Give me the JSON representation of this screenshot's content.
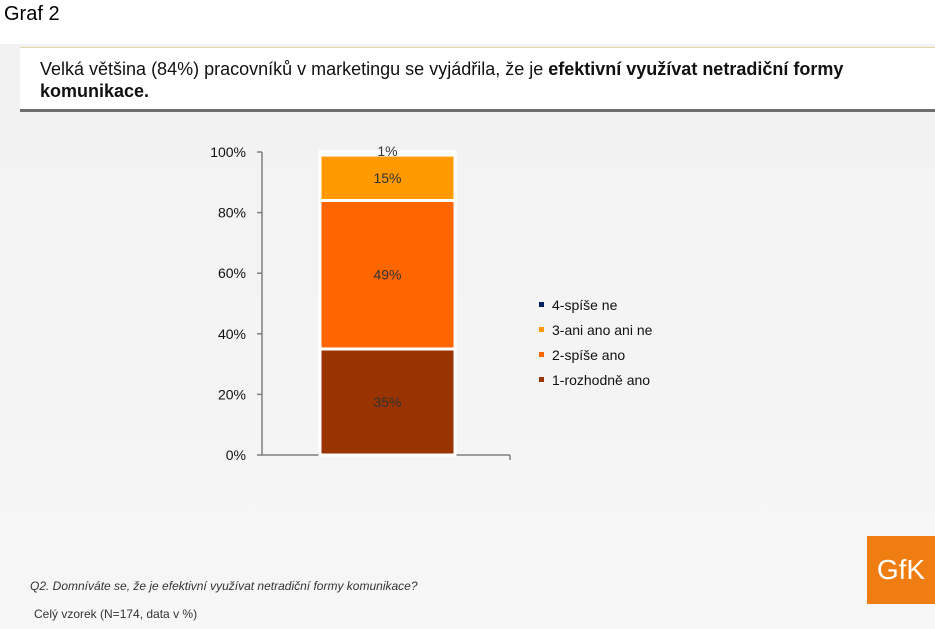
{
  "page_label": "Graf 2",
  "headline": {
    "normal": "Velká většina (84%) pracovníků v marketingu se vyjádřila, že je ",
    "bold": "efektivní využívat netradiční formy komunikace."
  },
  "chart_data": {
    "type": "bar",
    "stacked": true,
    "categories": [
      ""
    ],
    "series": [
      {
        "name": "1-rozhodně ano",
        "values": [
          35
        ],
        "label": "35%",
        "color": "#993300"
      },
      {
        "name": "2-spíše ano",
        "values": [
          49
        ],
        "label": "49%",
        "color": "#ff6600"
      },
      {
        "name": "3-ani ano ani ne",
        "values": [
          15
        ],
        "label": "15%",
        "color": "#ff9900"
      },
      {
        "name": "4-spíše ne",
        "values": [
          1
        ],
        "label": "1%",
        "color": "#002060"
      }
    ],
    "y_ticks": [
      "0%",
      "20%",
      "40%",
      "60%",
      "80%",
      "100%"
    ],
    "ylim": [
      0,
      100
    ],
    "legend_position": "right",
    "grid": false
  },
  "footer": {
    "question": "Q2. Domníváte se, že je efektivní využívat netradiční formy komunikace?",
    "sample": "Celý vzorek (N=174, data v %)"
  },
  "logo_text": "GfK"
}
